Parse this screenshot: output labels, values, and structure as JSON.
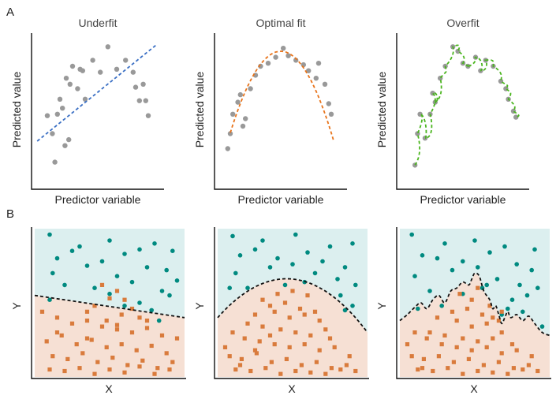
{
  "figure": {
    "panel_labels": [
      "A",
      "B"
    ]
  },
  "chart_data": [
    {
      "type": "scatter",
      "panel": "A",
      "title": "Underfit",
      "xlabel": "Predictor variable",
      "ylabel": "Predicted value",
      "xlim": [
        0,
        1
      ],
      "ylim": [
        0,
        1
      ],
      "points": {
        "x": [
          0.1,
          0.14,
          0.16,
          0.18,
          0.2,
          0.22,
          0.24,
          0.25,
          0.27,
          0.28,
          0.3,
          0.34,
          0.36,
          0.38,
          0.4,
          0.46,
          0.52,
          0.58,
          0.65,
          0.72,
          0.78,
          0.8,
          0.83,
          0.86,
          0.88,
          0.9
        ],
        "y": [
          0.47,
          0.35,
          0.16,
          0.48,
          0.58,
          0.52,
          0.27,
          0.72,
          0.31,
          0.68,
          0.8,
          0.65,
          0.78,
          0.77,
          0.58,
          0.84,
          0.76,
          0.93,
          0.78,
          0.84,
          0.76,
          0.66,
          0.57,
          0.68,
          0.57,
          0.47
        ]
      },
      "fit": {
        "style": "linear",
        "color": "#3a6fc4",
        "x": [
          0.02,
          0.96
        ],
        "y": [
          0.3,
          0.94
        ]
      }
    },
    {
      "type": "scatter",
      "panel": "A",
      "title": "Optimal fit",
      "xlabel": "Predictor variable",
      "ylabel": "Predicted value",
      "xlim": [
        0,
        1
      ],
      "ylim": [
        0,
        1
      ],
      "points": {
        "x": [
          0.08,
          0.1,
          0.12,
          0.16,
          0.18,
          0.2,
          0.22,
          0.26,
          0.3,
          0.34,
          0.4,
          0.46,
          0.52,
          0.56,
          0.62,
          0.68,
          0.72,
          0.78,
          0.8,
          0.85,
          0.88,
          0.9
        ],
        "y": [
          0.25,
          0.35,
          0.48,
          0.56,
          0.61,
          0.4,
          0.45,
          0.65,
          0.74,
          0.8,
          0.82,
          0.86,
          0.92,
          0.87,
          0.84,
          0.81,
          0.77,
          0.72,
          0.82,
          0.68,
          0.55,
          0.48
        ],
        "y_adjusted": null
      },
      "fit": {
        "style": "quadratic",
        "color": "#e8731a"
      }
    },
    {
      "type": "scatter",
      "panel": "A",
      "title": "Overfit",
      "xlabel": "Predictor variable",
      "ylabel": "Predicted value",
      "xlim": [
        0,
        1
      ],
      "ylim": [
        0,
        1
      ],
      "points": {
        "x": [
          0.12,
          0.14,
          0.16,
          0.2,
          0.24,
          0.26,
          0.28,
          0.32,
          0.36,
          0.42,
          0.46,
          0.5,
          0.54,
          0.6,
          0.64,
          0.68,
          0.74,
          0.8,
          0.84,
          0.86,
          0.9,
          0.92
        ],
        "y": [
          0.14,
          0.35,
          0.48,
          0.32,
          0.48,
          0.62,
          0.56,
          0.72,
          0.8,
          0.93,
          0.9,
          0.82,
          0.8,
          0.86,
          0.77,
          0.84,
          0.8,
          0.7,
          0.65,
          0.58,
          0.5,
          0.46
        ]
      },
      "fit": {
        "style": "interpolating",
        "color": "#4ab51e"
      }
    },
    {
      "type": "scatter",
      "panel": "B",
      "title": "",
      "xlabel": "X",
      "ylabel": "Y",
      "xlim": [
        0,
        1
      ],
      "ylim": [
        0,
        1
      ],
      "regions": {
        "upper_color": "#dcefef",
        "lower_color": "#f6e0d4"
      },
      "boundary": {
        "style": "linear",
        "x": [
          0,
          1
        ],
        "y": [
          0.55,
          0.4
        ]
      },
      "classes": [
        {
          "name": "circles",
          "color": "#008a80",
          "shape": "circle",
          "x": [
            0.1,
            0.3,
            0.5,
            0.7,
            0.15,
            0.25,
            0.45,
            0.6,
            0.8,
            0.92,
            0.12,
            0.35,
            0.55,
            0.75,
            0.88,
            0.2,
            0.4,
            0.65,
            0.85,
            0.95,
            0.1,
            0.5,
            0.7,
            0.9,
            0.78,
            0.6,
            0.83
          ],
          "y": [
            0.96,
            0.88,
            0.92,
            0.86,
            0.8,
            0.85,
            0.78,
            0.83,
            0.9,
            0.85,
            0.7,
            0.75,
            0.68,
            0.74,
            0.72,
            0.62,
            0.6,
            0.64,
            0.58,
            0.65,
            0.52,
            0.56,
            0.5,
            0.55,
            0.45,
            0.48,
            0.38
          ]
        },
        {
          "name": "squares",
          "color": "#d97b3c",
          "shape": "square",
          "x": [
            0.45,
            0.55,
            0.5,
            0.6,
            0.4,
            0.35,
            0.65,
            0.7,
            0.58,
            0.48,
            0.05,
            0.15,
            0.25,
            0.35,
            0.45,
            0.55,
            0.65,
            0.75,
            0.85,
            0.95,
            0.08,
            0.18,
            0.28,
            0.38,
            0.48,
            0.58,
            0.68,
            0.78,
            0.88,
            0.12,
            0.22,
            0.32,
            0.42,
            0.52,
            0.62,
            0.72,
            0.82,
            0.92,
            0.1,
            0.2,
            0.3,
            0.4,
            0.5,
            0.6,
            0.7,
            0.8,
            0.9,
            0.15,
            0.35,
            0.55,
            0.75
          ],
          "y": [
            0.62,
            0.58,
            0.53,
            0.52,
            0.48,
            0.44,
            0.46,
            0.4,
            0.42,
            0.38,
            0.44,
            0.4,
            0.36,
            0.38,
            0.34,
            0.32,
            0.3,
            0.33,
            0.28,
            0.26,
            0.24,
            0.28,
            0.22,
            0.25,
            0.2,
            0.22,
            0.18,
            0.21,
            0.16,
            0.14,
            0.12,
            0.16,
            0.1,
            0.13,
            0.08,
            0.11,
            0.06,
            0.1,
            0.05,
            0.04,
            0.06,
            0.02,
            0.05,
            0.03,
            0.07,
            0.02,
            0.05,
            0.3,
            0.26,
            0.35,
            0.38
          ]
        }
      ]
    },
    {
      "type": "scatter",
      "panel": "B",
      "title": "",
      "xlabel": "X",
      "ylabel": "Y",
      "xlim": [
        0,
        1
      ],
      "ylim": [
        0,
        1
      ],
      "regions": {
        "upper_color": "#dcefef",
        "lower_color": "#f6e0d4"
      },
      "boundary": {
        "style": "quadratic",
        "x": [
          0,
          0.5,
          1
        ],
        "y": [
          0.4,
          0.66,
          0.3
        ]
      },
      "classes": [
        {
          "name": "circles",
          "color": "#008a80",
          "shape": "circle",
          "x": [
            0.1,
            0.3,
            0.52,
            0.75,
            0.9,
            0.15,
            0.25,
            0.4,
            0.6,
            0.7,
            0.85,
            0.12,
            0.35,
            0.5,
            0.65,
            0.8,
            0.92,
            0.08,
            0.2,
            0.45,
            0.58,
            0.82,
            0.9,
            0.85
          ],
          "y": [
            0.95,
            0.92,
            0.96,
            0.88,
            0.9,
            0.82,
            0.86,
            0.8,
            0.84,
            0.78,
            0.74,
            0.7,
            0.74,
            0.76,
            0.7,
            0.66,
            0.62,
            0.6,
            0.6,
            0.62,
            0.64,
            0.55,
            0.48,
            0.45
          ],
          "adjust": null
        },
        {
          "name": "squares",
          "color": "#d97b3c",
          "shape": "square",
          "x": [
            0.3,
            0.4,
            0.5,
            0.6,
            0.35,
            0.45,
            0.55,
            0.65,
            0.25,
            0.38,
            0.48,
            0.58,
            0.68,
            0.72,
            0.2,
            0.3,
            0.42,
            0.52,
            0.62,
            0.75,
            0.1,
            0.18,
            0.28,
            0.38,
            0.48,
            0.58,
            0.68,
            0.78,
            0.88,
            0.08,
            0.16,
            0.26,
            0.36,
            0.46,
            0.56,
            0.66,
            0.76,
            0.86,
            0.12,
            0.22,
            0.32,
            0.42,
            0.52,
            0.62,
            0.72,
            0.82,
            0.92,
            0.05,
            0.15,
            0.25,
            0.35
          ],
          "y": [
            0.52,
            0.56,
            0.58,
            0.55,
            0.48,
            0.5,
            0.46,
            0.44,
            0.42,
            0.44,
            0.4,
            0.42,
            0.38,
            0.32,
            0.36,
            0.34,
            0.32,
            0.3,
            0.28,
            0.26,
            0.3,
            0.26,
            0.24,
            0.22,
            0.2,
            0.22,
            0.18,
            0.2,
            0.14,
            0.14,
            0.12,
            0.16,
            0.1,
            0.12,
            0.08,
            0.1,
            0.06,
            0.08,
            0.05,
            0.04,
            0.06,
            0.02,
            0.04,
            0.03,
            0.02,
            0.05,
            0.04,
            0.2,
            0.08,
            0.18,
            0.28
          ]
        }
      ]
    },
    {
      "type": "scatter",
      "panel": "B",
      "title": "",
      "xlabel": "X",
      "ylabel": "Y",
      "xlim": [
        0,
        1
      ],
      "ylim": [
        0,
        1
      ],
      "regions": {
        "upper_color": "#dcefef",
        "lower_color": "#f6e0d4"
      },
      "boundary": {
        "style": "wiggly",
        "x": [
          0.0,
          0.05,
          0.1,
          0.14,
          0.18,
          0.22,
          0.26,
          0.3,
          0.34,
          0.38,
          0.42,
          0.46,
          0.48,
          0.5,
          0.53,
          0.56,
          0.6,
          0.62,
          0.64,
          0.66,
          0.68,
          0.7,
          0.72,
          0.74,
          0.78,
          0.82,
          0.86,
          0.9,
          0.95,
          1.0
        ],
        "y": [
          0.38,
          0.42,
          0.47,
          0.5,
          0.46,
          0.52,
          0.55,
          0.5,
          0.58,
          0.6,
          0.64,
          0.62,
          0.66,
          0.7,
          0.68,
          0.58,
          0.52,
          0.46,
          0.48,
          0.42,
          0.36,
          0.4,
          0.44,
          0.4,
          0.42,
          0.38,
          0.41,
          0.36,
          0.3,
          0.28
        ]
      },
      "classes": [
        {
          "name": "circles",
          "color": "#008a80",
          "shape": "circle",
          "x": [
            0.08,
            0.3,
            0.5,
            0.7,
            0.9,
            0.15,
            0.25,
            0.42,
            0.6,
            0.78,
            0.88,
            0.1,
            0.35,
            0.52,
            0.65,
            0.8,
            0.92,
            0.2,
            0.42,
            0.58,
            0.75,
            0.85,
            0.12,
            0.28,
            0.55,
            0.68,
            0.72,
            0.82,
            0.95
          ],
          "y": [
            0.96,
            0.9,
            0.92,
            0.88,
            0.86,
            0.82,
            0.8,
            0.78,
            0.84,
            0.76,
            0.72,
            0.68,
            0.72,
            0.74,
            0.66,
            0.62,
            0.6,
            0.58,
            0.56,
            0.62,
            0.52,
            0.55,
            0.46,
            0.48,
            0.6,
            0.42,
            0.46,
            0.44,
            0.34
          ]
        },
        {
          "name": "squares",
          "color": "#d97b3c",
          "shape": "square",
          "x": [
            0.4,
            0.48,
            0.52,
            0.6,
            0.35,
            0.45,
            0.55,
            0.62,
            0.25,
            0.38,
            0.48,
            0.58,
            0.68,
            0.2,
            0.3,
            0.42,
            0.52,
            0.62,
            0.75,
            0.1,
            0.18,
            0.28,
            0.38,
            0.48,
            0.58,
            0.68,
            0.78,
            0.88,
            0.08,
            0.16,
            0.26,
            0.36,
            0.46,
            0.56,
            0.66,
            0.76,
            0.86,
            0.12,
            0.22,
            0.32,
            0.42,
            0.52,
            0.62,
            0.72,
            0.82,
            0.92,
            0.05,
            0.15,
            0.68,
            0.66
          ],
          "y": [
            0.56,
            0.52,
            0.6,
            0.48,
            0.44,
            0.46,
            0.42,
            0.4,
            0.4,
            0.38,
            0.34,
            0.36,
            0.3,
            0.3,
            0.28,
            0.26,
            0.24,
            0.26,
            0.22,
            0.3,
            0.26,
            0.22,
            0.2,
            0.18,
            0.2,
            0.16,
            0.18,
            0.14,
            0.14,
            0.12,
            0.14,
            0.1,
            0.12,
            0.08,
            0.1,
            0.06,
            0.08,
            0.05,
            0.04,
            0.06,
            0.02,
            0.04,
            0.03,
            0.02,
            0.05,
            0.04,
            0.22,
            0.06,
            0.44,
            0.38
          ]
        }
      ]
    }
  ]
}
